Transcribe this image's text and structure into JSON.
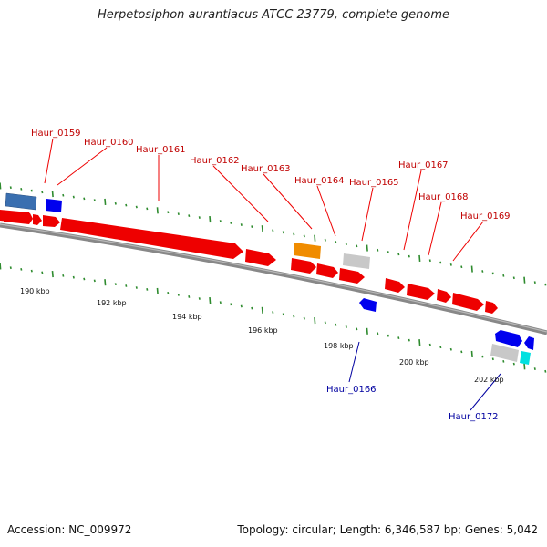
{
  "title": "Herpetosiphon aurantiacus ATCC 23779, complete genome",
  "footer": {
    "accession": "Accession: NC_009972",
    "summary": "Topology: circular; Length: 6,346,587 bp; Genes: 5,042"
  },
  "colors": {
    "cds": "#ee0000",
    "rna": "#3a6fb0",
    "pseudo": "#c0c0c0",
    "reverse": "#0000ee",
    "orange": "#f08c00",
    "cyan": "#00e0e0",
    "tick": "#2e8b2e",
    "label_forward": "#c00000",
    "label_reverse": "#0000a0"
  },
  "scale": {
    "unit": "kbp",
    "labels": [
      "190 kbp",
      "192 kbp",
      "194 kbp",
      "196 kbp",
      "198 kbp",
      "200 kbp",
      "202 kbp"
    ]
  },
  "gene_labels": {
    "forward": [
      "Haur_0159",
      "Haur_0160",
      "Haur_0161",
      "Haur_0162",
      "Haur_0163",
      "Haur_0164",
      "Haur_0165",
      "Haur_0167",
      "Haur_0168",
      "Haur_0169"
    ],
    "reverse": [
      "Haur_0166",
      "Haur_0172"
    ]
  }
}
